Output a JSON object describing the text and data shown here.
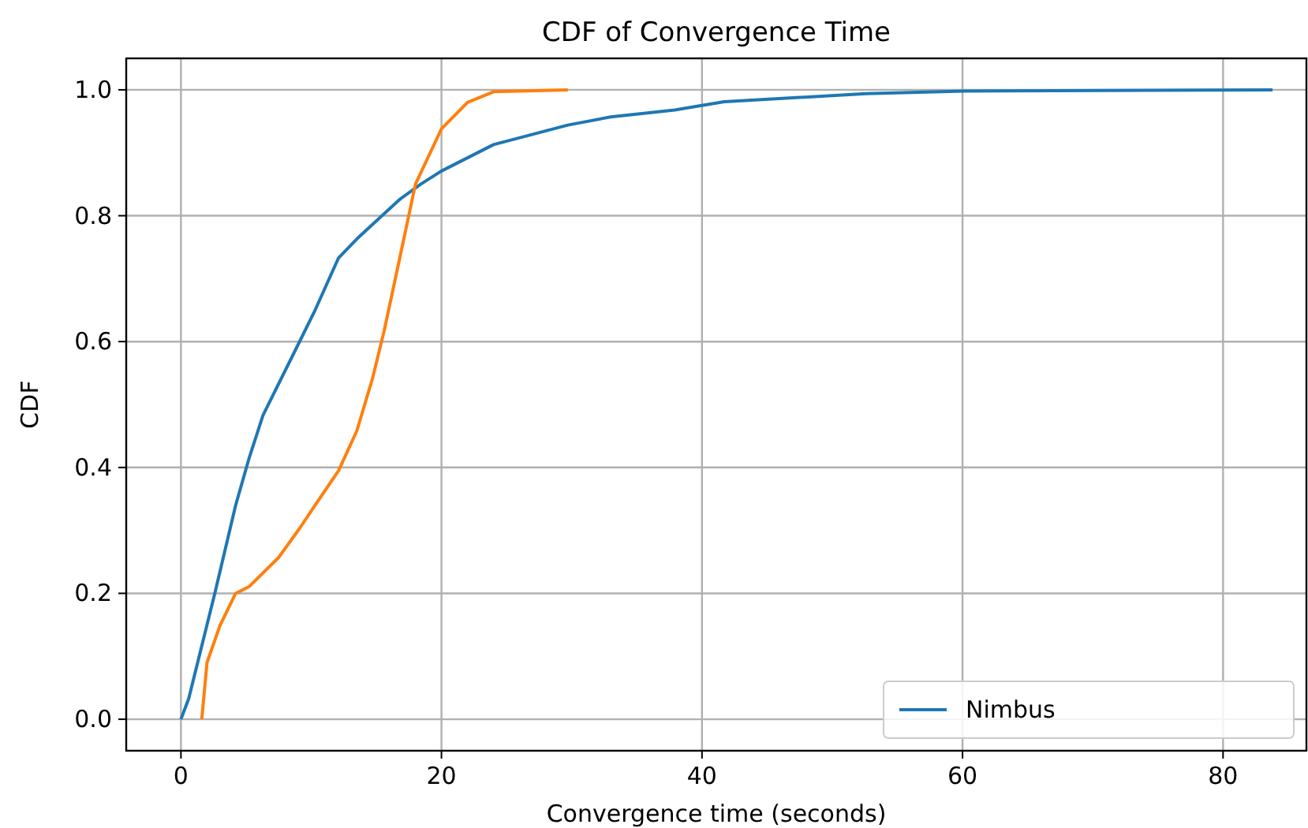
{
  "chart_data": {
    "type": "line",
    "title": "CDF of Convergence Time",
    "xlabel": "Convergence time (seconds)",
    "ylabel": "CDF",
    "xlim": [
      -4.2,
      86.4
    ],
    "ylim": [
      -0.05,
      1.05
    ],
    "xticks": [
      0,
      20,
      40,
      60,
      80
    ],
    "yticks": [
      {
        "value": 0,
        "label": "0.0"
      },
      {
        "value": 0.2,
        "label": "0.2"
      },
      {
        "value": 0.4,
        "label": "0.4"
      },
      {
        "value": 0.6,
        "label": "0.6"
      },
      {
        "value": 0.8,
        "label": "0.8"
      },
      {
        "value": 1,
        "label": "1.0"
      }
    ],
    "grid": true,
    "legend": "bottom right",
    "line_style": "solid",
    "marker": "none",
    "series": [
      {
        "name": "Nimbus",
        "color": "#1f77b4",
        "x": [
          0,
          0.6,
          2.6,
          4.2,
          5.25,
          6.3,
          8.7,
          10.3,
          12.1,
          13.5,
          16.8,
          18.4,
          20,
          24,
          29.7,
          33,
          37.9,
          41.7,
          52.6,
          60.1,
          83.8
        ],
        "values": [
          0,
          0.033,
          0.2,
          0.34,
          0.416,
          0.483,
          0.583,
          0.65,
          0.733,
          0.763,
          0.826,
          0.85,
          0.871,
          0.913,
          0.944,
          0.957,
          0.968,
          0.981,
          0.994,
          0.998,
          1.0
        ]
      },
      {
        "color": "#ff7f0e",
        "x": [
          1.6,
          2.0,
          3.0,
          4.2,
          5.25,
          7.5,
          9.1,
          10.3,
          12.1,
          13.5,
          14.7,
          15.6,
          16.8,
          18.0,
          20,
          22,
          24,
          29.7
        ],
        "values": [
          0,
          0.09,
          0.149,
          0.2,
          0.211,
          0.257,
          0.303,
          0.34,
          0.395,
          0.458,
          0.541,
          0.617,
          0.733,
          0.85,
          0.938,
          0.98,
          0.997,
          1.0
        ]
      }
    ]
  }
}
